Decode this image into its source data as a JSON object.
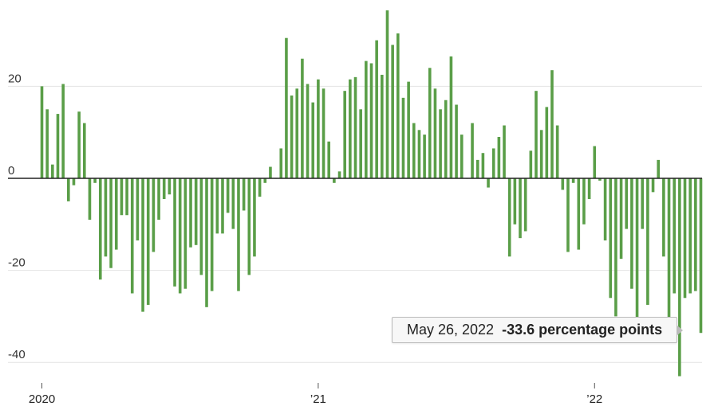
{
  "chart_data": {
    "type": "bar",
    "color": "#5a9e48",
    "ylim": [
      -45,
      38
    ],
    "yticks": [
      20,
      0,
      -20,
      -40
    ],
    "xticks": [
      {
        "label": "2020",
        "index": 0
      },
      {
        "label": "’21",
        "index": 52
      },
      {
        "label": "’22",
        "index": 104
      }
    ],
    "values": [
      20,
      15,
      3,
      14,
      20.5,
      -5,
      -1.5,
      14.5,
      12,
      -9,
      -1,
      -22,
      -17,
      -19.5,
      -15.5,
      -8,
      -8,
      -25,
      -13.5,
      -29,
      -27.5,
      -16,
      -9,
      -4.5,
      -3.5,
      -23.5,
      -25,
      -24,
      -15,
      -14.5,
      -21,
      -28,
      -24.5,
      -12,
      -12,
      -7.5,
      -11,
      -24.5,
      -7,
      -21,
      -17,
      -4,
      -1,
      2.5,
      0,
      6.5,
      30.5,
      18,
      19.5,
      26,
      20.5,
      16.5,
      21.5,
      19.5,
      8,
      -1,
      1.5,
      19,
      21.5,
      22,
      15,
      25.5,
      25,
      30,
      22.5,
      36.5,
      29,
      31.5,
      17.5,
      21,
      12,
      10.5,
      9.5,
      24,
      19.5,
      15,
      17,
      26.5,
      16,
      9.5,
      0,
      12,
      4,
      5.5,
      -2,
      6.5,
      9,
      11.5,
      -17,
      -10,
      -13,
      -11.5,
      6,
      19,
      10.5,
      15.5,
      23.5,
      11.5,
      -2.5,
      -16,
      -1,
      -15.5,
      -10,
      -4.5,
      7,
      -0.5,
      -13.5,
      -26,
      -30,
      -17.5,
      -11,
      -24,
      -31,
      -11,
      -27.5,
      -3,
      4,
      -17,
      -33.5,
      -25,
      -43,
      -26,
      -25,
      -24.5,
      -33.6
    ],
    "highlight": {
      "index": 124,
      "date": "May 26, 2022",
      "value": "-33.6",
      "unit": "percentage points"
    }
  }
}
